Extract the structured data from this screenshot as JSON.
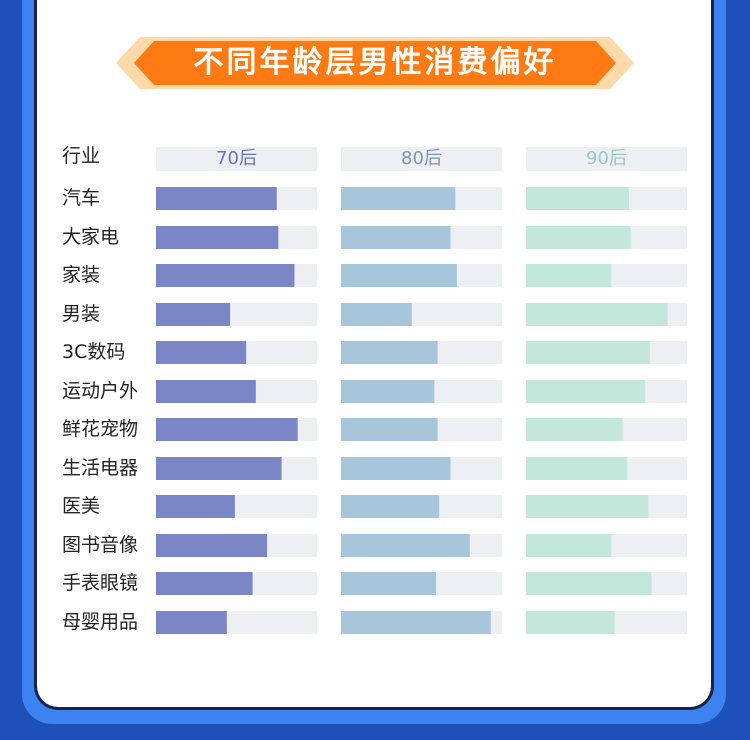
{
  "colors": {
    "background": "#1f4fb8",
    "frame": "#3c82f0",
    "banner": "#ff7a12",
    "track": "#eeeff2",
    "series_70s": "#7b86c6",
    "series_80s": "#a8c6db",
    "series_90s": "#c4e7dc",
    "head_70s": "#6873b8",
    "head_80s": "#7d94b6",
    "head_90s": "#9cc7c4"
  },
  "header": {
    "title": "不同年龄层男性消费偏好"
  },
  "chart_data": {
    "type": "bar",
    "orientation": "horizontal",
    "title": "不同年龄层男性消费偏好",
    "category_header": "行业",
    "xlim": [
      0,
      1
    ],
    "categories": [
      "汽车",
      "大家电",
      "家装",
      "男装",
      "3C数码",
      "运动户外",
      "鲜花宠物",
      "生活电器",
      "医美",
      "图书音像",
      "手表眼镜",
      "母婴用品"
    ],
    "series": [
      {
        "name": "70后",
        "values": [
          0.75,
          0.76,
          0.86,
          0.46,
          0.56,
          0.62,
          0.88,
          0.78,
          0.49,
          0.69,
          0.6,
          0.44
        ]
      },
      {
        "name": "80后",
        "values": [
          0.71,
          0.68,
          0.72,
          0.44,
          0.6,
          0.58,
          0.6,
          0.68,
          0.61,
          0.8,
          0.59,
          0.93
        ]
      },
      {
        "name": "90后",
        "values": [
          0.64,
          0.65,
          0.53,
          0.88,
          0.77,
          0.74,
          0.6,
          0.63,
          0.76,
          0.53,
          0.78,
          0.55
        ]
      }
    ],
    "grid": false,
    "legend": "column headers"
  }
}
